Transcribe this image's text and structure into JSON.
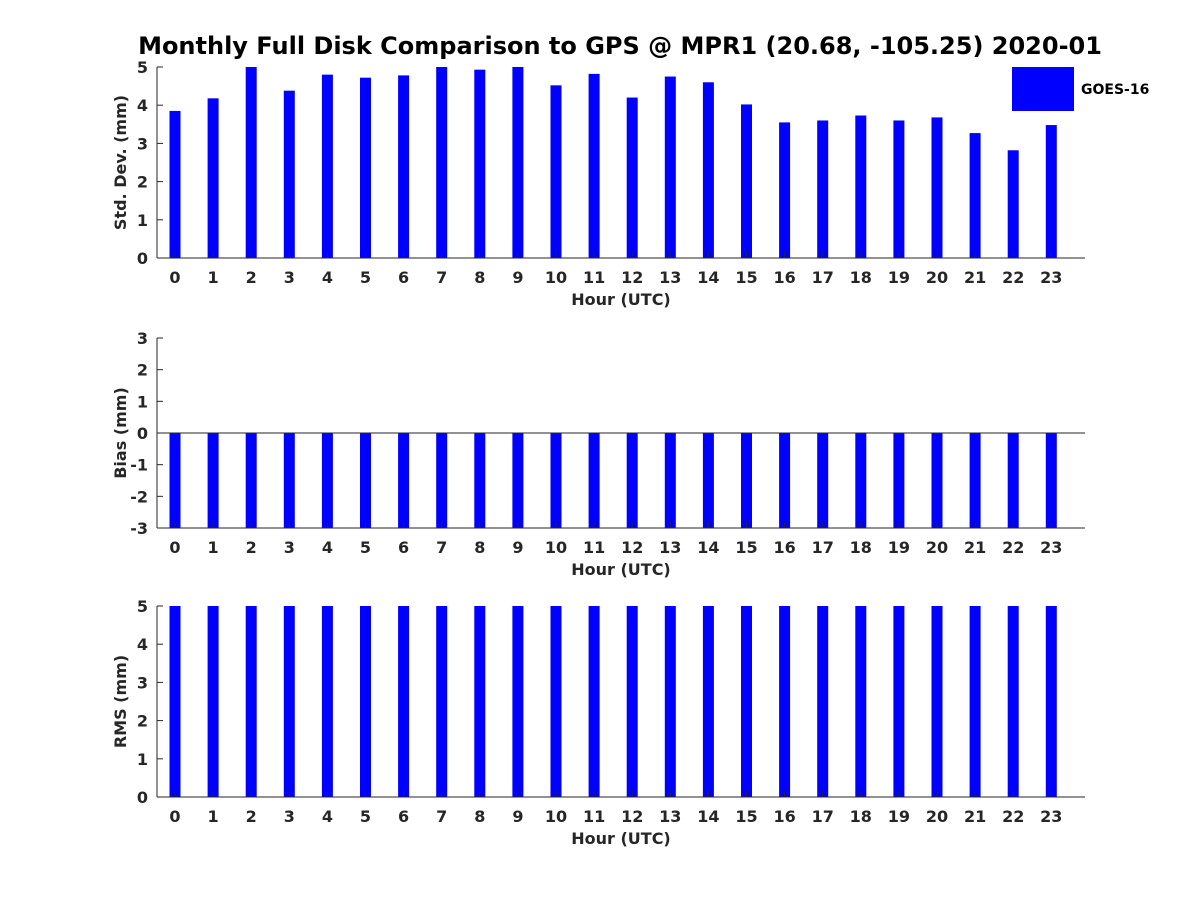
{
  "title": "Monthly Full Disk Comparison to GPS @ MPR1 (20.68, -105.25) 2020-01",
  "colors": {
    "bar": "#0000ff",
    "axis": "#262626"
  },
  "legend": {
    "label": "GOES-16",
    "placement": "top-right"
  },
  "chart_data": [
    {
      "type": "bar",
      "name": "std-dev",
      "xlabel": "Hour (UTC)",
      "ylabel": "Std. Dev. (mm)",
      "ylim": [
        0,
        5
      ],
      "yticks": [
        "0",
        "1",
        "2",
        "3",
        "4",
        "5"
      ],
      "categories": [
        "0",
        "1",
        "2",
        "3",
        "4",
        "5",
        "6",
        "7",
        "8",
        "9",
        "10",
        "11",
        "12",
        "13",
        "14",
        "15",
        "16",
        "17",
        "18",
        "19",
        "20",
        "21",
        "22",
        "23"
      ],
      "series": [
        {
          "name": "GOES-16",
          "values": [
            3.85,
            4.18,
            5.0,
            4.38,
            4.8,
            4.72,
            4.78,
            5.0,
            4.93,
            5.0,
            4.52,
            4.82,
            4.2,
            4.75,
            4.6,
            4.02,
            3.55,
            3.6,
            3.73,
            3.6,
            3.68,
            3.27,
            2.82,
            3.48
          ]
        }
      ]
    },
    {
      "type": "bar",
      "name": "bias",
      "xlabel": "Hour (UTC)",
      "ylabel": "Bias (mm)",
      "ylim": [
        -3,
        3
      ],
      "yticks": [
        "-3",
        "-2",
        "-1",
        "0",
        "1",
        "2",
        "3"
      ],
      "zero_line": true,
      "categories": [
        "0",
        "1",
        "2",
        "3",
        "4",
        "5",
        "6",
        "7",
        "8",
        "9",
        "10",
        "11",
        "12",
        "13",
        "14",
        "15",
        "16",
        "17",
        "18",
        "19",
        "20",
        "21",
        "22",
        "23"
      ],
      "series": [
        {
          "name": "GOES-16",
          "values": [
            -3,
            -3,
            -3,
            -3,
            -3,
            -3,
            -3,
            -3,
            -3,
            -3,
            -3,
            -3,
            -3,
            -3,
            -3,
            -3,
            -3,
            -3,
            -3,
            -3,
            -3,
            -3,
            -3,
            -3
          ]
        }
      ]
    },
    {
      "type": "bar",
      "name": "rms",
      "xlabel": "Hour (UTC)",
      "ylabel": "RMS (mm)",
      "ylim": [
        0,
        5
      ],
      "yticks": [
        "0",
        "1",
        "2",
        "3",
        "4",
        "5"
      ],
      "categories": [
        "0",
        "1",
        "2",
        "3",
        "4",
        "5",
        "6",
        "7",
        "8",
        "9",
        "10",
        "11",
        "12",
        "13",
        "14",
        "15",
        "16",
        "17",
        "18",
        "19",
        "20",
        "21",
        "22",
        "23"
      ],
      "series": [
        {
          "name": "GOES-16",
          "values": [
            5,
            5,
            5,
            5,
            5,
            5,
            5,
            5,
            5,
            5,
            5,
            5,
            5,
            5,
            5,
            5,
            5,
            5,
            5,
            5,
            5,
            5,
            5,
            5
          ]
        }
      ]
    }
  ]
}
